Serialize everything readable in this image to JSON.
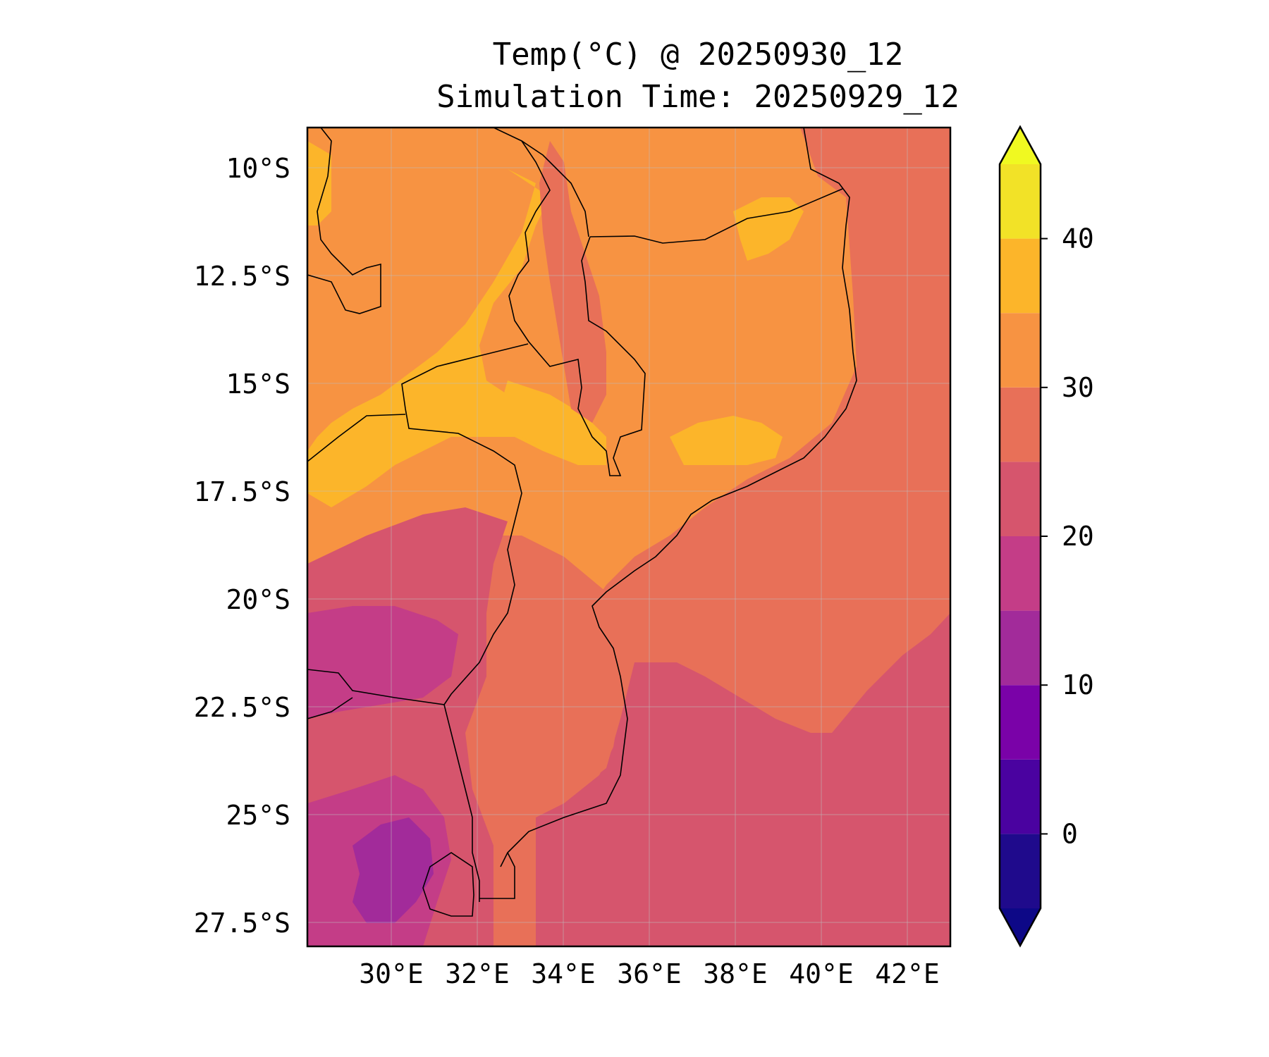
{
  "title": "Temp(°C) @ 20250930_12",
  "subtitle": "Simulation Time: 20250929_12",
  "map": {
    "variable": "Temp(°C)",
    "lon_range": [
      28.0,
      42.9
    ],
    "lat_range": [
      -28.4,
      -9.3
    ],
    "lat_ticks": [
      "10°S",
      "12.5°S",
      "15°S",
      "17.5°S",
      "20°S",
      "22.5°S",
      "25°S",
      "27.5°S"
    ],
    "lon_ticks": [
      "30°E",
      "32°E",
      "34°E",
      "36°E",
      "38°E",
      "40°E",
      "42°E"
    ],
    "gridlines": true,
    "border_color": "#000000"
  },
  "colorbar": {
    "colormap": "plasma",
    "extend": "both",
    "levels": [
      -5,
      0,
      5,
      10,
      15,
      20,
      25,
      30,
      35,
      40,
      45
    ],
    "tick_values": [
      0,
      10,
      20,
      30,
      40
    ],
    "tick_labels": [
      "0",
      "10",
      "20",
      "30",
      "40"
    ],
    "colors": [
      "#1f0a8c",
      "#4a02a0",
      "#7a02a8",
      "#a22b9a",
      "#c43d87",
      "#d6556d",
      "#e87058",
      "#f79342",
      "#fcb52a",
      "#f2e227"
    ],
    "under_color": "#0d0887",
    "over_color": "#f0f921"
  }
}
